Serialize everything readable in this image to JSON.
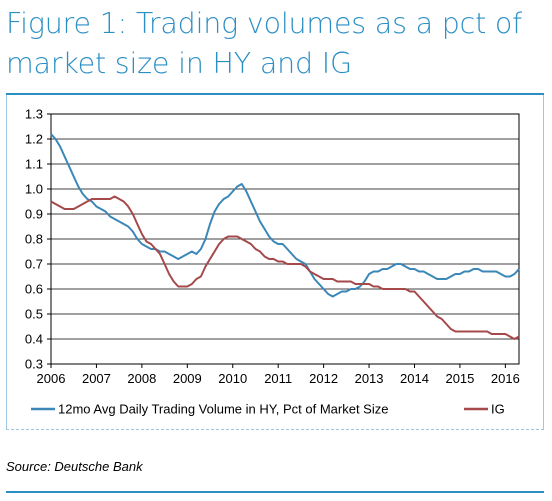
{
  "title_lines": [
    "Figure 1: Trading volumes as a pct of",
    "market size in HY and IG"
  ],
  "source": "Source: Deutsche Bank",
  "colors": {
    "accent": "#2b8fc4",
    "hy": "#3a87b8",
    "ig": "#a5494b"
  },
  "chart_data": {
    "type": "line",
    "title": "Figure 1: Trading volumes as a pct of market size in HY and IG",
    "xlim": [
      2006,
      2016.3
    ],
    "ylim": [
      0.3,
      1.3
    ],
    "xticks": [
      "2006",
      "2007",
      "2008",
      "2009",
      "2010",
      "2011",
      "2012",
      "2013",
      "2014",
      "2015",
      "2016"
    ],
    "yticks": [
      "1.3",
      "1.2",
      "1.1",
      "1.0",
      "0.9",
      "0.8",
      "0.7",
      "0.6",
      "0.5",
      "0.4",
      "0.3"
    ],
    "legend_position": "bottom",
    "series": [
      {
        "name": "12mo Avg Daily Trading Volume in HY, Pct of Market Size",
        "color": "#3a87b8",
        "points": [
          [
            2006.0,
            1.22
          ],
          [
            2006.1,
            1.2
          ],
          [
            2006.2,
            1.17
          ],
          [
            2006.3,
            1.13
          ],
          [
            2006.4,
            1.09
          ],
          [
            2006.5,
            1.05
          ],
          [
            2006.6,
            1.01
          ],
          [
            2006.7,
            0.98
          ],
          [
            2006.8,
            0.96
          ],
          [
            2006.9,
            0.95
          ],
          [
            2007.0,
            0.93
          ],
          [
            2007.1,
            0.92
          ],
          [
            2007.2,
            0.91
          ],
          [
            2007.3,
            0.89
          ],
          [
            2007.4,
            0.88
          ],
          [
            2007.5,
            0.87
          ],
          [
            2007.6,
            0.86
          ],
          [
            2007.7,
            0.85
          ],
          [
            2007.8,
            0.83
          ],
          [
            2007.9,
            0.8
          ],
          [
            2008.0,
            0.78
          ],
          [
            2008.1,
            0.77
          ],
          [
            2008.2,
            0.76
          ],
          [
            2008.3,
            0.76
          ],
          [
            2008.4,
            0.75
          ],
          [
            2008.5,
            0.75
          ],
          [
            2008.6,
            0.74
          ],
          [
            2008.7,
            0.73
          ],
          [
            2008.8,
            0.72
          ],
          [
            2008.9,
            0.73
          ],
          [
            2009.0,
            0.74
          ],
          [
            2009.1,
            0.75
          ],
          [
            2009.2,
            0.74
          ],
          [
            2009.3,
            0.76
          ],
          [
            2009.4,
            0.8
          ],
          [
            2009.5,
            0.86
          ],
          [
            2009.6,
            0.91
          ],
          [
            2009.7,
            0.94
          ],
          [
            2009.8,
            0.96
          ],
          [
            2009.9,
            0.97
          ],
          [
            2010.0,
            0.99
          ],
          [
            2010.1,
            1.01
          ],
          [
            2010.2,
            1.02
          ],
          [
            2010.3,
            0.99
          ],
          [
            2010.4,
            0.95
          ],
          [
            2010.5,
            0.91
          ],
          [
            2010.6,
            0.87
          ],
          [
            2010.7,
            0.84
          ],
          [
            2010.8,
            0.81
          ],
          [
            2010.9,
            0.79
          ],
          [
            2011.0,
            0.78
          ],
          [
            2011.1,
            0.78
          ],
          [
            2011.2,
            0.76
          ],
          [
            2011.3,
            0.74
          ],
          [
            2011.4,
            0.72
          ],
          [
            2011.5,
            0.71
          ],
          [
            2011.6,
            0.7
          ],
          [
            2011.7,
            0.67
          ],
          [
            2011.8,
            0.64
          ],
          [
            2011.9,
            0.62
          ],
          [
            2012.0,
            0.6
          ],
          [
            2012.1,
            0.58
          ],
          [
            2012.2,
            0.57
          ],
          [
            2012.3,
            0.58
          ],
          [
            2012.4,
            0.59
          ],
          [
            2012.5,
            0.59
          ],
          [
            2012.6,
            0.6
          ],
          [
            2012.7,
            0.6
          ],
          [
            2012.8,
            0.61
          ],
          [
            2012.9,
            0.63
          ],
          [
            2013.0,
            0.66
          ],
          [
            2013.1,
            0.67
          ],
          [
            2013.2,
            0.67
          ],
          [
            2013.3,
            0.68
          ],
          [
            2013.4,
            0.68
          ],
          [
            2013.5,
            0.69
          ],
          [
            2013.6,
            0.7
          ],
          [
            2013.7,
            0.7
          ],
          [
            2013.8,
            0.69
          ],
          [
            2013.9,
            0.68
          ],
          [
            2014.0,
            0.68
          ],
          [
            2014.1,
            0.67
          ],
          [
            2014.2,
            0.67
          ],
          [
            2014.3,
            0.66
          ],
          [
            2014.4,
            0.65
          ],
          [
            2014.5,
            0.64
          ],
          [
            2014.6,
            0.64
          ],
          [
            2014.7,
            0.64
          ],
          [
            2014.8,
            0.65
          ],
          [
            2014.9,
            0.66
          ],
          [
            2015.0,
            0.66
          ],
          [
            2015.1,
            0.67
          ],
          [
            2015.2,
            0.67
          ],
          [
            2015.3,
            0.68
          ],
          [
            2015.4,
            0.68
          ],
          [
            2015.5,
            0.67
          ],
          [
            2015.6,
            0.67
          ],
          [
            2015.7,
            0.67
          ],
          [
            2015.8,
            0.67
          ],
          [
            2015.9,
            0.66
          ],
          [
            2016.0,
            0.65
          ],
          [
            2016.1,
            0.65
          ],
          [
            2016.2,
            0.66
          ],
          [
            2016.3,
            0.68
          ]
        ]
      },
      {
        "name": "IG",
        "color": "#a5494b",
        "points": [
          [
            2006.0,
            0.95
          ],
          [
            2006.1,
            0.94
          ],
          [
            2006.2,
            0.93
          ],
          [
            2006.3,
            0.92
          ],
          [
            2006.4,
            0.92
          ],
          [
            2006.5,
            0.92
          ],
          [
            2006.6,
            0.93
          ],
          [
            2006.7,
            0.94
          ],
          [
            2006.8,
            0.95
          ],
          [
            2006.9,
            0.96
          ],
          [
            2007.0,
            0.96
          ],
          [
            2007.1,
            0.96
          ],
          [
            2007.2,
            0.96
          ],
          [
            2007.3,
            0.96
          ],
          [
            2007.4,
            0.97
          ],
          [
            2007.5,
            0.96
          ],
          [
            2007.6,
            0.95
          ],
          [
            2007.7,
            0.93
          ],
          [
            2007.8,
            0.9
          ],
          [
            2007.9,
            0.86
          ],
          [
            2008.0,
            0.82
          ],
          [
            2008.1,
            0.79
          ],
          [
            2008.2,
            0.78
          ],
          [
            2008.3,
            0.76
          ],
          [
            2008.4,
            0.74
          ],
          [
            2008.5,
            0.7
          ],
          [
            2008.6,
            0.66
          ],
          [
            2008.7,
            0.63
          ],
          [
            2008.8,
            0.61
          ],
          [
            2008.9,
            0.61
          ],
          [
            2009.0,
            0.61
          ],
          [
            2009.1,
            0.62
          ],
          [
            2009.2,
            0.64
          ],
          [
            2009.3,
            0.65
          ],
          [
            2009.4,
            0.69
          ],
          [
            2009.5,
            0.72
          ],
          [
            2009.6,
            0.75
          ],
          [
            2009.7,
            0.78
          ],
          [
            2009.8,
            0.8
          ],
          [
            2009.9,
            0.81
          ],
          [
            2010.0,
            0.81
          ],
          [
            2010.1,
            0.81
          ],
          [
            2010.2,
            0.8
          ],
          [
            2010.3,
            0.79
          ],
          [
            2010.4,
            0.78
          ],
          [
            2010.5,
            0.76
          ],
          [
            2010.6,
            0.75
          ],
          [
            2010.7,
            0.73
          ],
          [
            2010.8,
            0.72
          ],
          [
            2010.9,
            0.72
          ],
          [
            2011.0,
            0.71
          ],
          [
            2011.1,
            0.71
          ],
          [
            2011.2,
            0.7
          ],
          [
            2011.3,
            0.7
          ],
          [
            2011.4,
            0.7
          ],
          [
            2011.5,
            0.7
          ],
          [
            2011.6,
            0.69
          ],
          [
            2011.7,
            0.67
          ],
          [
            2011.8,
            0.66
          ],
          [
            2011.9,
            0.65
          ],
          [
            2012.0,
            0.64
          ],
          [
            2012.1,
            0.64
          ],
          [
            2012.2,
            0.64
          ],
          [
            2012.3,
            0.63
          ],
          [
            2012.4,
            0.63
          ],
          [
            2012.5,
            0.63
          ],
          [
            2012.6,
            0.63
          ],
          [
            2012.7,
            0.62
          ],
          [
            2012.8,
            0.62
          ],
          [
            2012.9,
            0.62
          ],
          [
            2013.0,
            0.62
          ],
          [
            2013.1,
            0.61
          ],
          [
            2013.2,
            0.61
          ],
          [
            2013.3,
            0.6
          ],
          [
            2013.4,
            0.6
          ],
          [
            2013.5,
            0.6
          ],
          [
            2013.6,
            0.6
          ],
          [
            2013.7,
            0.6
          ],
          [
            2013.8,
            0.6
          ],
          [
            2013.9,
            0.59
          ],
          [
            2014.0,
            0.59
          ],
          [
            2014.1,
            0.57
          ],
          [
            2014.2,
            0.55
          ],
          [
            2014.3,
            0.53
          ],
          [
            2014.4,
            0.51
          ],
          [
            2014.5,
            0.49
          ],
          [
            2014.6,
            0.48
          ],
          [
            2014.7,
            0.46
          ],
          [
            2014.8,
            0.44
          ],
          [
            2014.9,
            0.43
          ],
          [
            2015.0,
            0.43
          ],
          [
            2015.1,
            0.43
          ],
          [
            2015.2,
            0.43
          ],
          [
            2015.3,
            0.43
          ],
          [
            2015.4,
            0.43
          ],
          [
            2015.5,
            0.43
          ],
          [
            2015.6,
            0.43
          ],
          [
            2015.7,
            0.42
          ],
          [
            2015.8,
            0.42
          ],
          [
            2015.9,
            0.42
          ],
          [
            2016.0,
            0.42
          ],
          [
            2016.1,
            0.41
          ],
          [
            2016.2,
            0.4
          ],
          [
            2016.3,
            0.41
          ]
        ]
      }
    ]
  }
}
